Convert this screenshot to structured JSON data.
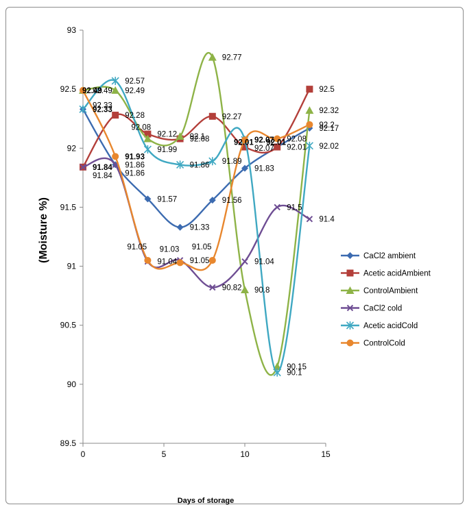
{
  "chart_data": {
    "type": "line",
    "xlabel": "Days of storage",
    "ylabel": "(Moisture %)",
    "xlim": [
      0,
      15
    ],
    "ylim": [
      89.5,
      93
    ],
    "xticks": [
      "0",
      "5",
      "10",
      "15"
    ],
    "yticks": [
      "89.5",
      "90",
      "90.5",
      "91",
      "91.5",
      "92",
      "92.5",
      "93"
    ],
    "grid": false,
    "legend_position": "right",
    "x": [
      0,
      2,
      4,
      6,
      8,
      10,
      12,
      14
    ],
    "series": [
      {
        "name": "CaCl2 ambient",
        "color": "#3c6bb0",
        "marker": "diamond",
        "values": [
          92.33,
          91.86,
          91.57,
          91.33,
          91.56,
          91.83,
          92.01,
          92.17
        ],
        "labels": [
          "92.33",
          "91.86",
          "91.57",
          "91.33",
          "91.56",
          "91.83",
          "92.01",
          "92.17"
        ]
      },
      {
        "name": "Acetic acidAmbient",
        "color": "#b33f3a",
        "marker": "square",
        "values": [
          91.84,
          92.28,
          92.12,
          92.08,
          92.27,
          92.01,
          92.01,
          92.5
        ],
        "labels": [
          "91.84",
          "92.28",
          "92.12",
          "92.08",
          "92.27",
          "92.01",
          "92.01",
          "92.5"
        ]
      },
      {
        "name": "ControlAmbient",
        "color": "#8eb347",
        "marker": "triangle",
        "values": [
          92.49,
          92.49,
          92.08,
          92.1,
          92.77,
          90.8,
          90.15,
          92.32
        ],
        "labels": [
          "92.49",
          "92.49",
          "92.08",
          "92.1",
          "92.77",
          "90.8",
          "90.15",
          "92.32"
        ]
      },
      {
        "name": "CaCl2 cold",
        "color": "#6e4d93",
        "marker": "x",
        "values": [
          91.84,
          91.86,
          91.04,
          91.05,
          90.82,
          91.04,
          91.5,
          91.4
        ],
        "labels": [
          "91.84",
          "91.86",
          "91.04",
          "91.05",
          "90.82",
          "91.04",
          "91.5",
          "91.4"
        ]
      },
      {
        "name": "Acetic acidCold",
        "color": "#3fa8c2",
        "marker": "asterisk",
        "values": [
          92.33,
          92.57,
          91.99,
          91.86,
          91.89,
          92.07,
          90.1,
          92.02
        ],
        "labels": [
          "92.33",
          "92.57",
          "91.99",
          "91.86",
          "91.89",
          "92.07",
          "90.1",
          "92.02"
        ]
      },
      {
        "name": "ControlCold",
        "color": "#e8872e",
        "marker": "circle",
        "values": [
          92.49,
          91.93,
          91.05,
          91.03,
          91.05,
          92.07,
          92.08,
          92.2
        ],
        "labels": [
          "92.49",
          "91.93",
          "91.05",
          "91.03",
          "91.05",
          "92.07",
          "92.08",
          "92.2"
        ]
      }
    ]
  }
}
